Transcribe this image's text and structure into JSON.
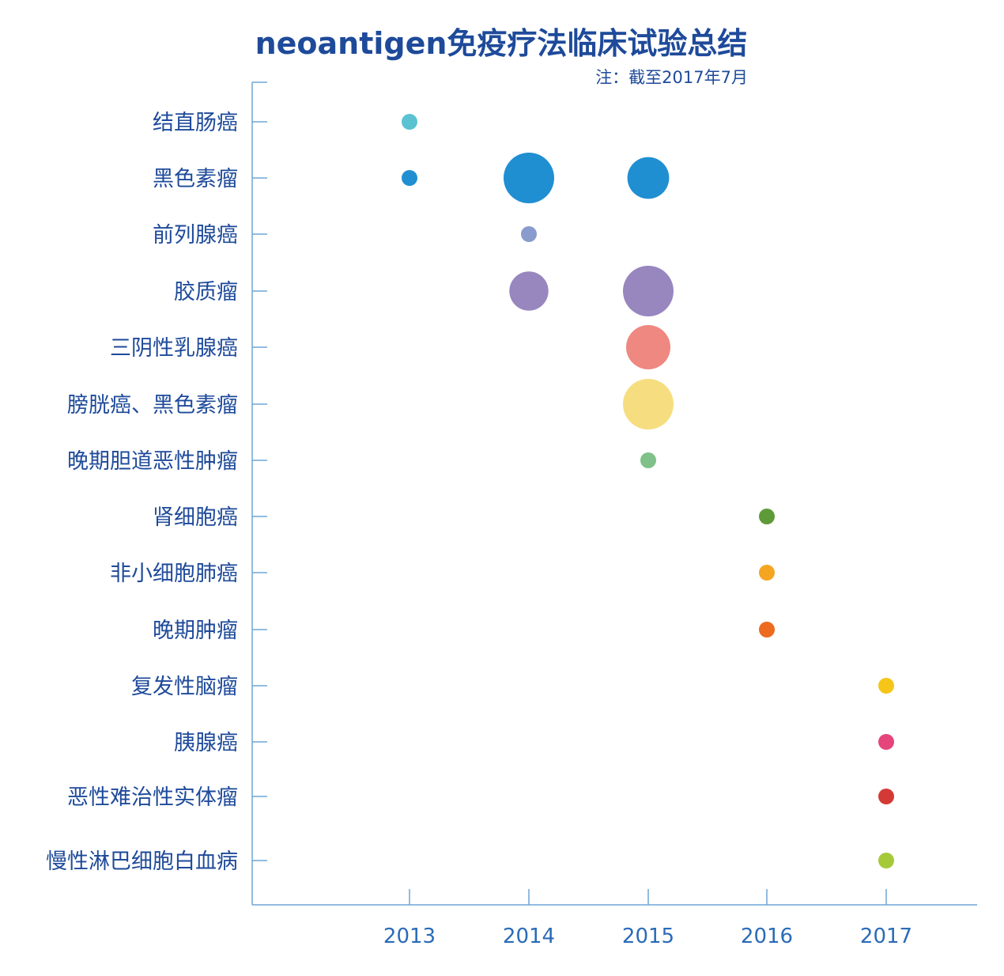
{
  "chart_data": {
    "type": "scatter",
    "title": "neoantigen免疫疗法临床试验总结",
    "subtitle": "注：截至2017年7月",
    "xlabel": "",
    "ylabel": "",
    "x_categories": [
      "2013",
      "2014",
      "2015",
      "2016",
      "2017"
    ],
    "y_categories": [
      "结直肠癌",
      "黑色素瘤",
      "前列腺癌",
      "胶质瘤",
      "三阴性乳腺癌",
      "膀胱癌、黑色素瘤",
      "晚期胆道恶性肿瘤",
      "肾细胞癌",
      "非小细胞肺癌",
      "晚期肿瘤",
      "复发性脑瘤",
      "胰腺癌",
      "恶性难治性实体瘤",
      "慢性淋巴细胞白血病"
    ],
    "grid": false,
    "legend": "none",
    "points": [
      {
        "category": "结直肠癌",
        "year": "2013",
        "size": 1,
        "color": "#5bc2d2"
      },
      {
        "category": "黑色素瘤",
        "year": "2013",
        "size": 1,
        "color": "#1f8fd2"
      },
      {
        "category": "黑色素瘤",
        "year": "2014",
        "size": 10,
        "color": "#1f8fd2"
      },
      {
        "category": "黑色素瘤",
        "year": "2015",
        "size": 6,
        "color": "#1f8fd2"
      },
      {
        "category": "前列腺癌",
        "year": "2014",
        "size": 1,
        "color": "#8a9ccd"
      },
      {
        "category": "胶质瘤",
        "year": "2014",
        "size": 5,
        "color": "#9886bf"
      },
      {
        "category": "胶质瘤",
        "year": "2015",
        "size": 10,
        "color": "#9886bf"
      },
      {
        "category": "三阴性乳腺癌",
        "year": "2015",
        "size": 7,
        "color": "#ee8880"
      },
      {
        "category": "膀胱癌、黑色素瘤",
        "year": "2015",
        "size": 10,
        "color": "#f6de80"
      },
      {
        "category": "晚期胆道恶性肿瘤",
        "year": "2015",
        "size": 1,
        "color": "#7fc188"
      },
      {
        "category": "肾细胞癌",
        "year": "2016",
        "size": 1,
        "color": "#5f9a38"
      },
      {
        "category": "非小细胞肺癌",
        "year": "2016",
        "size": 1,
        "color": "#f4a522"
      },
      {
        "category": "晚期肿瘤",
        "year": "2016",
        "size": 1,
        "color": "#ec6b1f"
      },
      {
        "category": "复发性脑瘤",
        "year": "2017",
        "size": 1,
        "color": "#f5c518"
      },
      {
        "category": "胰腺癌",
        "year": "2017",
        "size": 1,
        "color": "#e5457a"
      },
      {
        "category": "恶性难治性实体瘤",
        "year": "2017",
        "size": 1,
        "color": "#d33a35"
      },
      {
        "category": "慢性淋巴细胞白血病",
        "year": "2017",
        "size": 1,
        "color": "#a6c93a"
      }
    ]
  },
  "colors": {
    "title": "#1e4a9a",
    "axis": "#6fa6d6",
    "x_tick_text": "#2a6bb8",
    "y_tick_text": "#1e4a9a"
  }
}
